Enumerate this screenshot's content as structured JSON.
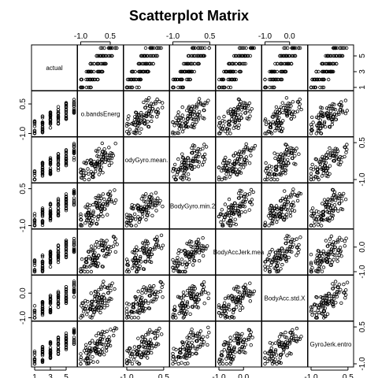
{
  "chart_data": {
    "type": "scatter",
    "title": "Scatterplot Matrix",
    "variables": [
      "actual",
      "o.bandsEnerg",
      "odyGyro.mean.",
      "BodyGyro.min.2",
      "BodyAccJerk.mea",
      "BodyAcc.std.X",
      "GyroJerk.entro"
    ],
    "ranges": [
      [
        1,
        6
      ],
      [
        -1.0,
        1.0
      ],
      [
        -1.0,
        0.6
      ],
      [
        -1.0,
        0.6
      ],
      [
        -1.0,
        0.6
      ],
      [
        -1.0,
        0.6
      ],
      [
        -1.0,
        0.6
      ]
    ],
    "axis_ticks": {
      "top": [
        {
          "col": 1,
          "labels": [
            "-1.0",
            "0.5"
          ],
          "values": [
            -1.0,
            0.5
          ]
        },
        {
          "col": 3,
          "labels": [
            "-1.0",
            "0.5"
          ],
          "values": [
            -1.0,
            0.5
          ]
        },
        {
          "col": 5,
          "labels": [
            "-1.0",
            "0.0"
          ],
          "values": [
            -1.0,
            0.0
          ]
        }
      ],
      "bottom": [
        {
          "col": 0,
          "labels": [
            "1",
            "3",
            "5"
          ],
          "values": [
            1,
            3,
            5
          ]
        },
        {
          "col": 2,
          "labels": [
            "-1.0",
            "0.5"
          ],
          "values": [
            -1.0,
            0.5
          ]
        },
        {
          "col": 4,
          "labels": [
            "-1.0",
            "0.0"
          ],
          "values": [
            -1.0,
            0.0
          ]
        },
        {
          "col": 6,
          "labels": [
            "-1.0",
            "0.5"
          ],
          "values": [
            -1.0,
            0.5
          ]
        }
      ],
      "left": [
        {
          "row": 1,
          "labels": [
            "-1.0",
            "0.5"
          ],
          "values": [
            -1.0,
            0.5
          ]
        },
        {
          "row": 3,
          "labels": [
            "-1.0",
            "0.5"
          ],
          "values": [
            -1.0,
            0.5
          ]
        },
        {
          "row": 5,
          "labels": [
            "-1.0",
            "0.0"
          ],
          "values": [
            -1.0,
            0.0
          ]
        }
      ],
      "right": [
        {
          "row": 0,
          "labels": [
            "1",
            "3",
            "5"
          ],
          "values": [
            1,
            3,
            5
          ]
        },
        {
          "row": 2,
          "labels": [
            "-1.0",
            "0.5"
          ],
          "values": [
            -1.0,
            0.5
          ]
        },
        {
          "row": 4,
          "labels": [
            "-1.0",
            "0.0"
          ],
          "values": [
            -1.0,
            0.0
          ]
        },
        {
          "row": 6,
          "labels": [
            "-1.0",
            "0.5"
          ],
          "values": [
            -1.0,
            0.5
          ]
        }
      ]
    },
    "grid": false,
    "marker": "open-circle"
  }
}
